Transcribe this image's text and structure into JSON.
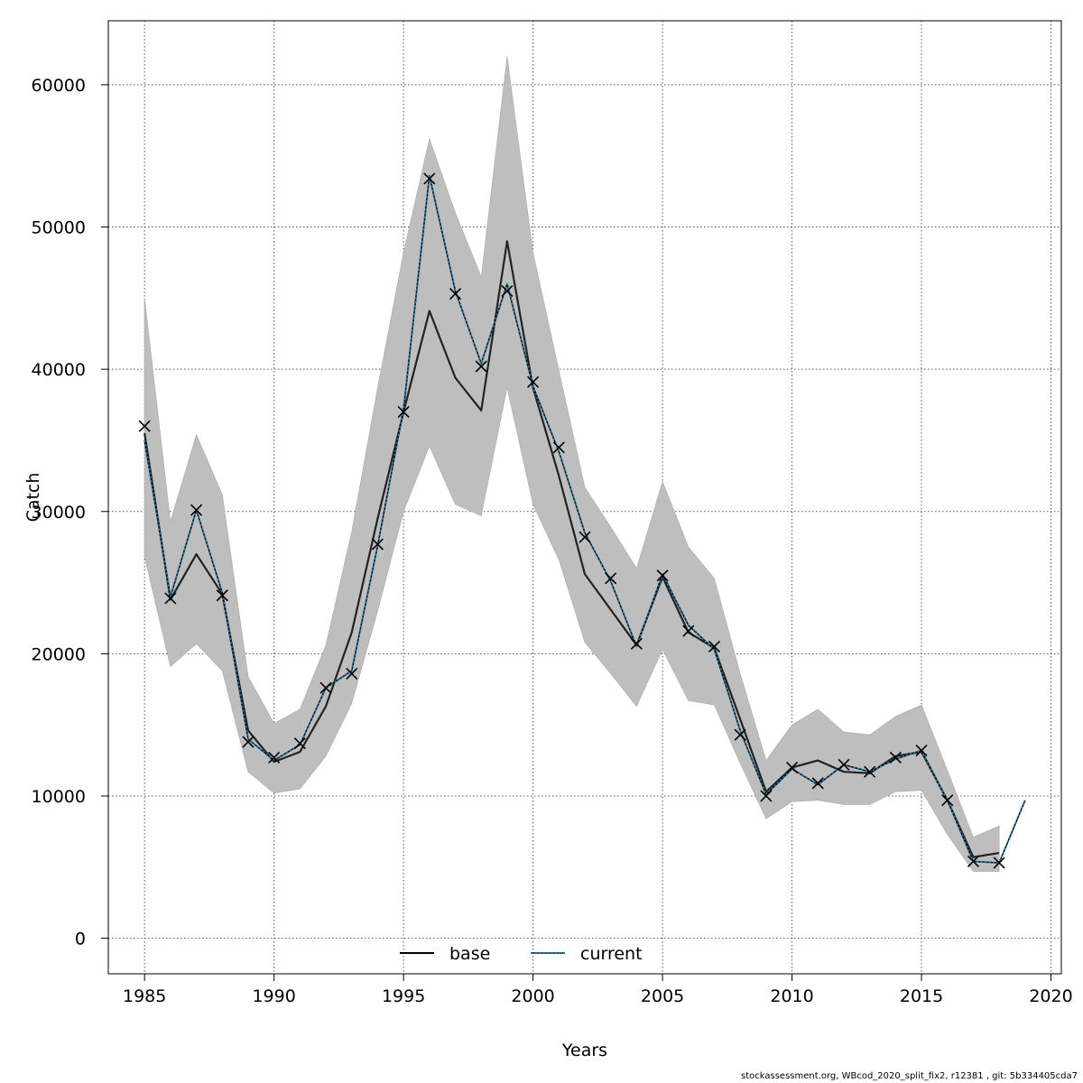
{
  "chart_data": {
    "type": "line",
    "xlabel": "Years",
    "ylabel": "Catch",
    "xlim": [
      1983.6,
      2020.4
    ],
    "ylim": [
      -2500,
      64500
    ],
    "x_ticks": [
      1985,
      1990,
      1995,
      2000,
      2005,
      2010,
      2015,
      2020
    ],
    "y_ticks": [
      0,
      10000,
      20000,
      30000,
      40000,
      50000,
      60000
    ],
    "grid": true,
    "legend_position": "bottom-center",
    "colors": {
      "base": "#000000",
      "current": "#1a7fb5",
      "ci_band": "#bebebe",
      "observed": "#000000"
    },
    "x": [
      1985,
      1986,
      1987,
      1988,
      1989,
      1990,
      1991,
      1992,
      1993,
      1994,
      1995,
      1996,
      1997,
      1998,
      1999,
      2000,
      2001,
      2002,
      2003,
      2004,
      2005,
      2006,
      2007,
      2008,
      2009,
      2010,
      2011,
      2012,
      2013,
      2014,
      2015,
      2016,
      2017,
      2018
    ],
    "series": [
      {
        "name": "base",
        "style": "solid",
        "values": [
          35500,
          23800,
          27000,
          24200,
          14600,
          12400,
          13100,
          16300,
          21500,
          29500,
          37000,
          44100,
          39400,
          37100,
          49000,
          38700,
          32500,
          25600,
          23100,
          20600,
          25400,
          21500,
          20400,
          15400,
          10300,
          12000,
          12500,
          11700,
          11600,
          12800,
          13100,
          9700,
          5700,
          6000
        ],
        "ci_lower": [
          26800,
          19100,
          20700,
          18800,
          11700,
          10200,
          10500,
          12800,
          16500,
          23000,
          30000,
          34600,
          30500,
          29700,
          38700,
          30500,
          26600,
          20800,
          18600,
          16300,
          20300,
          16700,
          16400,
          12300,
          8400,
          9600,
          9700,
          9400,
          9400,
          10300,
          10400,
          7300,
          4700,
          4700
        ],
        "ci_upper": [
          45000,
          29300,
          35400,
          31200,
          18400,
          15100,
          16100,
          20600,
          28600,
          38700,
          48200,
          56200,
          51000,
          46500,
          62000,
          48200,
          39900,
          31700,
          28900,
          26000,
          32100,
          27500,
          25300,
          18600,
          12500,
          15000,
          16100,
          14500,
          14300,
          15600,
          16400,
          11800,
          7100,
          7900
        ]
      },
      {
        "name": "current",
        "style": "dotted",
        "values": [
          35000,
          24000,
          30100,
          24300,
          14000,
          12500,
          13600,
          17600,
          18800,
          27600,
          37200,
          53600,
          45500,
          40400,
          46000,
          38800,
          34200,
          28500,
          25100,
          20500,
          25600,
          22000,
          20300,
          14600,
          10100,
          11900,
          10800,
          12200,
          11700,
          12600,
          13200,
          9700,
          5400,
          5300,
          9700
        ],
        "x": [
          1985,
          1986,
          1987,
          1988,
          1989,
          1990,
          1991,
          1992,
          1993,
          1994,
          1995,
          1996,
          1997,
          1998,
          1999,
          2000,
          2001,
          2002,
          2003,
          2004,
          2005,
          2006,
          2007,
          2008,
          2009,
          2010,
          2011,
          2012,
          2013,
          2014,
          2015,
          2016,
          2017,
          2018,
          2019
        ]
      }
    ],
    "observed": [
      36000,
      23900,
      30100,
      24100,
      13800,
      12700,
      13700,
      17600,
      18600,
      27700,
      37000,
      53400,
      45300,
      40200,
      45500,
      39100,
      34500,
      28200,
      25300,
      20700,
      25500,
      21600,
      20500,
      14300,
      10000,
      12000,
      10900,
      12200,
      11700,
      12700,
      13200,
      9700,
      5400,
      5300
    ],
    "legend": [
      {
        "label": "base",
        "style": "solid"
      },
      {
        "label": "current",
        "style": "dotted"
      }
    ]
  },
  "footer": "stockassessment.org, WBcod_2020_split_fix2, r12381 , git: 5b334405cda7"
}
